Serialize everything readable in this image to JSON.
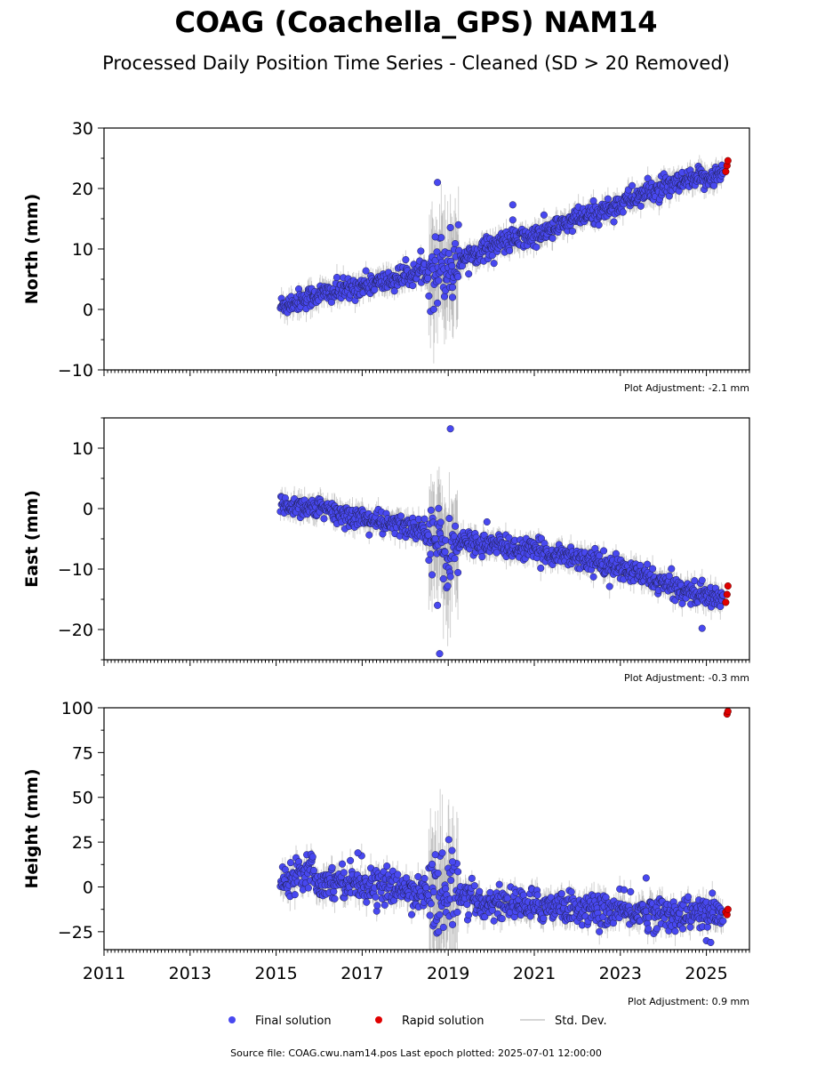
{
  "header": {
    "title": "COAG (Coachella_GPS) NAM14",
    "subtitle": "Processed Daily Position Time Series - Cleaned (SD > 20 Removed)"
  },
  "legend": {
    "final": "Final solution",
    "rapid": "Rapid solution",
    "stddev": "Std. Dev."
  },
  "footer": {
    "source": "Source file: COAG.cwu.nam14.pos  Last epoch plotted: 2025-07-01 12:00:00"
  },
  "colors": {
    "final": "#4848f0",
    "rapid": "#e00000",
    "stddev": "#7a7a7a"
  },
  "chart_data": [
    {
      "type": "scatter",
      "ylabel": "North (mm)",
      "xlim": [
        2011,
        2026
      ],
      "ylim": [
        -10,
        30
      ],
      "yticks": [
        -10,
        0,
        10,
        20,
        30
      ],
      "xticks": [
        2011,
        2013,
        2015,
        2017,
        2019,
        2021,
        2023,
        2025
      ],
      "show_xtick_labels": false,
      "grid": false,
      "adjustment": "Plot Adjustment: -2.1 mm",
      "series": [
        {
          "name": "Final solution",
          "x": [
            2015.1,
            2015.5,
            2016.0,
            2016.5,
            2017.0,
            2017.5,
            2018.0,
            2018.5,
            2018.8,
            2019.0,
            2019.5,
            2020.0,
            2020.5,
            2021.0,
            2021.5,
            2022.0,
            2022.5,
            2023.0,
            2023.5,
            2024.0,
            2024.5,
            2025.0,
            2025.4
          ],
          "y": [
            0.5,
            1.5,
            2.5,
            3.0,
            4.0,
            4.5,
            5.5,
            6.5,
            7.0,
            7.5,
            9.0,
            10.5,
            11.5,
            12.0,
            13.5,
            15.0,
            16.0,
            17.5,
            19.0,
            20.0,
            21.0,
            21.8,
            22.5
          ]
        },
        {
          "name": "Rapid solution",
          "x": [
            2025.45,
            2025.48,
            2025.5
          ],
          "y": [
            22.8,
            23.8,
            24.6
          ]
        }
      ],
      "outliers": {
        "x": [
          2018.75,
          2018.7,
          2019.1,
          2020.5,
          2020.5
        ],
        "y": [
          21.0,
          12.0,
          2.0,
          17.3,
          14.8
        ]
      }
    },
    {
      "type": "scatter",
      "ylabel": "East (mm)",
      "xlim": [
        2011,
        2026
      ],
      "ylim": [
        -25,
        15
      ],
      "yticks": [
        -20,
        -10,
        0,
        10
      ],
      "xticks": [
        2011,
        2013,
        2015,
        2017,
        2019,
        2021,
        2023,
        2025
      ],
      "show_xtick_labels": false,
      "grid": false,
      "adjustment": "Plot Adjustment: -0.3 mm",
      "series": [
        {
          "name": "Final solution",
          "x": [
            2015.1,
            2015.5,
            2016.0,
            2016.5,
            2017.0,
            2017.5,
            2018.0,
            2018.5,
            2018.8,
            2019.0,
            2019.3,
            2019.5,
            2020.0,
            2020.5,
            2021.0,
            2021.5,
            2022.0,
            2022.5,
            2023.0,
            2023.5,
            2024.0,
            2024.5,
            2025.0,
            2025.4
          ],
          "y": [
            0.5,
            0.5,
            0.0,
            -1.0,
            -1.5,
            -2.5,
            -3.0,
            -3.5,
            -6.0,
            -8.0,
            -5.5,
            -5.5,
            -6.0,
            -6.5,
            -7.0,
            -7.5,
            -8.0,
            -9.0,
            -10.0,
            -11.0,
            -12.5,
            -13.5,
            -14.5,
            -15.0
          ]
        },
        {
          "name": "Rapid solution",
          "x": [
            2025.45,
            2025.48,
            2025.5
          ],
          "y": [
            -15.5,
            -14.2,
            -12.8
          ]
        }
      ],
      "outliers": {
        "x": [
          2019.05,
          2018.8,
          2018.75,
          2024.9,
          2019.9
        ],
        "y": [
          13.2,
          -24.0,
          -16.0,
          -19.8,
          -2.2
        ]
      }
    },
    {
      "type": "scatter",
      "ylabel": "Height (mm)",
      "xlim": [
        2011,
        2026
      ],
      "ylim": [
        -35,
        100
      ],
      "yticks": [
        -25,
        0,
        25,
        50,
        75,
        100
      ],
      "xticks": [
        2011,
        2013,
        2015,
        2017,
        2019,
        2021,
        2023,
        2025
      ],
      "show_xtick_labels": true,
      "grid": false,
      "adjustment": "Plot Adjustment: 0.9 mm",
      "series": [
        {
          "name": "Final solution",
          "x": [
            2015.1,
            2015.5,
            2015.8,
            2016.0,
            2016.5,
            2017.0,
            2017.5,
            2018.0,
            2018.5,
            2019.0,
            2019.5,
            2020.0,
            2020.5,
            2021.0,
            2021.5,
            2022.0,
            2022.5,
            2023.0,
            2023.5,
            2024.0,
            2024.5,
            2025.0,
            2025.4
          ],
          "y": [
            3,
            8,
            12,
            2,
            4,
            2,
            0,
            -1,
            -4,
            -6,
            -8,
            -9,
            -9,
            -11,
            -10,
            -12,
            -13,
            -14,
            -14,
            -15,
            -15,
            -15,
            -15
          ]
        },
        {
          "name": "Rapid solution",
          "x": [
            2025.45,
            2025.48,
            2025.5,
            2025.48,
            2025.5
          ],
          "y": [
            -14,
            -15.5,
            -12.5,
            96.5,
            98
          ]
        }
      ],
      "outliers": {
        "x": [
          2016.9,
          2018.7,
          2019.1,
          2023.6,
          2025.0,
          2025.1
        ],
        "y": [
          19,
          18,
          14,
          5,
          -30,
          -31
        ]
      }
    }
  ]
}
